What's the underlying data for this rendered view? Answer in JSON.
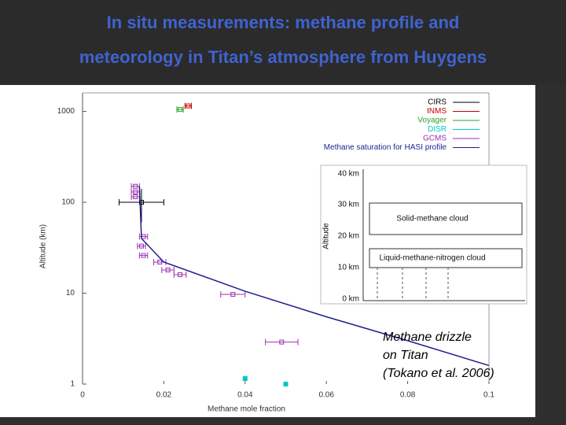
{
  "slide": {
    "title": [
      "In situ measurements: methane profile and",
      "meteorology in Titan’s atmosphere from Huygens"
    ]
  },
  "chart_data": {
    "type": "scatter",
    "xlabel": "Methane mole fraction",
    "ylabel": "Altitude (km)",
    "xlim": [
      0,
      0.1
    ],
    "ylim": [
      1,
      1600
    ],
    "log_y": true,
    "legend": "upper right",
    "xticks": [
      0,
      0.02,
      0.04,
      0.06,
      0.08,
      0.1
    ],
    "yticks": [
      1,
      10,
      100,
      1000
    ],
    "series": [
      {
        "name": "CIRS",
        "color": "#000000",
        "mark": "errorbar",
        "x": [
          0.0145
        ],
        "y": [
          100
        ],
        "xerr": [
          0.0055
        ],
        "yerr": [
          40
        ]
      },
      {
        "name": "INMS",
        "color": "#c00000",
        "mark": "errorbar",
        "x": [
          0.026
        ],
        "y": [
          1150
        ],
        "xerr": [
          0.0008
        ]
      },
      {
        "name": "Voyager",
        "color": "#2ca02c",
        "mark": "errorbar",
        "x": [
          0.024
        ],
        "y": [
          1050
        ],
        "xerr": [
          0.0008
        ]
      },
      {
        "name": "DISR",
        "color": "#00c8c8",
        "mark": "errorbar",
        "x": [
          0.04,
          0.05
        ],
        "y": [
          1.15,
          1.0
        ],
        "xerr": [
          0,
          0
        ]
      },
      {
        "name": "GCMS",
        "color": "#9b30b0",
        "mark": "errorbar",
        "x": [
          0.013,
          0.013,
          0.013,
          0.015,
          0.0145,
          0.015,
          0.019,
          0.021,
          0.024,
          0.037,
          0.049
        ],
        "y": [
          150,
          130,
          115,
          42,
          33,
          26,
          22,
          18,
          16,
          9.7,
          2.9
        ],
        "xerr": [
          0.001,
          0.001,
          0.001,
          0.001,
          0.001,
          0.001,
          0.0015,
          0.0015,
          0.0015,
          0.003,
          0.004
        ]
      },
      {
        "name": "Methane saturation for HASI profile",
        "color": "#1f1f8f",
        "mark": "line",
        "x": [
          0.014,
          0.0145,
          0.02,
          0.04,
          0.06,
          0.08,
          0.1
        ],
        "y": [
          150,
          40,
          22,
          10.5,
          5.5,
          3,
          1.6
        ]
      }
    ]
  },
  "inset": {
    "ylabel": "Altitude",
    "yticks": [
      "40 km",
      "30 km",
      "20 km",
      "10 km",
      "0 km"
    ],
    "clouds": [
      "Solid-methane cloud",
      "Liquid-methane-nitrogen cloud"
    ]
  },
  "caption": [
    "Methane drizzle",
    "on Titan",
    "(Tokano et al. 2006)"
  ]
}
